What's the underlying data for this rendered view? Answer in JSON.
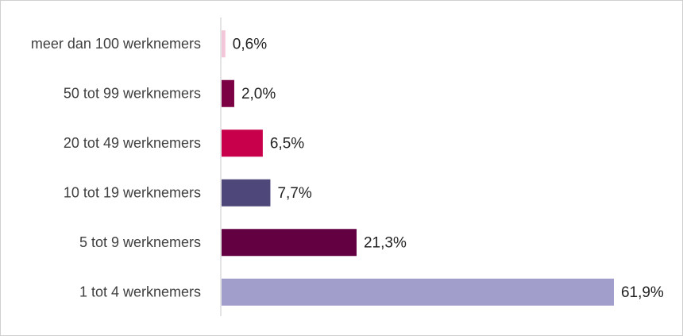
{
  "chart_data": {
    "type": "bar",
    "orientation": "horizontal",
    "categories": [
      "meer dan 100 werknemers",
      "50 tot 99 werknemers",
      "20 tot 49 werknemers",
      "10 tot 19 werknemers",
      "5 tot 9 werknemers",
      "1 tot 4 werknemers"
    ],
    "values": [
      0.6,
      2.0,
      6.5,
      7.7,
      21.3,
      61.9
    ],
    "value_labels": [
      "0,6%",
      "2,0%",
      "6,5%",
      "7,7%",
      "21,3%",
      "61,9%"
    ],
    "colors": [
      "#f2c6d8",
      "#7c0044",
      "#c8004b",
      "#4d4879",
      "#620042",
      "#a29ecc"
    ]
  }
}
